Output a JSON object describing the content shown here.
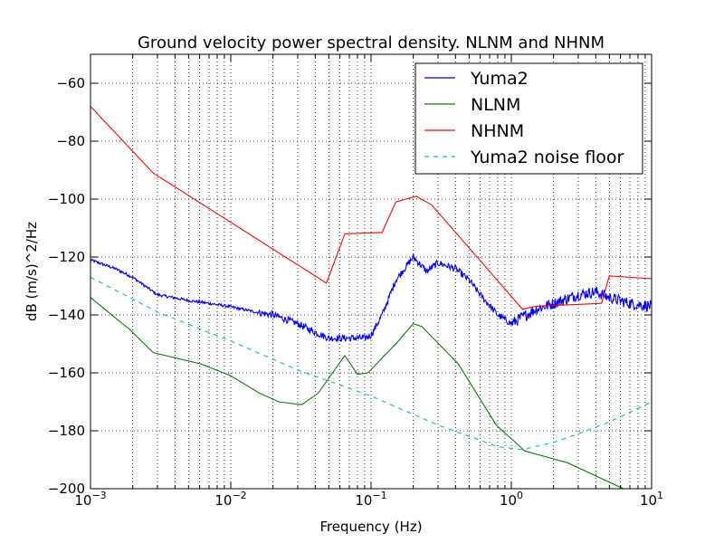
{
  "chart_data": {
    "type": "line",
    "title": "Ground velocity power spectral density. NLNM and NHNM",
    "xlabel": "Frequency (Hz)",
    "ylabel": "dB (m/s)^2/Hz",
    "xscale": "log",
    "xlim": [
      0.001,
      10
    ],
    "ylim": [
      -200,
      -50
    ],
    "x_ticks": [
      {
        "value": 0.001,
        "base": "10",
        "exp": "−3"
      },
      {
        "value": 0.01,
        "base": "10",
        "exp": "−2"
      },
      {
        "value": 0.1,
        "base": "10",
        "exp": "−1"
      },
      {
        "value": 1,
        "base": "10",
        "exp": "0"
      },
      {
        "value": 10,
        "base": "10",
        "exp": "1"
      }
    ],
    "y_ticks": [
      -200,
      -180,
      -160,
      -140,
      -120,
      -100,
      -80,
      -60
    ],
    "y_tick_labels": [
      "−200",
      "−180",
      "−160",
      "−140",
      "−120",
      "−100",
      "−80",
      "−60"
    ],
    "grid": true,
    "legend_position": "top-right",
    "series": [
      {
        "name": "Yuma2",
        "color": "#0000ff",
        "style": "solid",
        "noisy": true,
        "x": [
          0.001,
          0.0015,
          0.002,
          0.003,
          0.005,
          0.007,
          0.0095,
          0.012,
          0.015,
          0.02,
          0.03,
          0.04,
          0.05,
          0.07,
          0.09,
          0.1,
          0.12,
          0.15,
          0.2,
          0.25,
          0.3,
          0.4,
          0.5,
          0.6,
          0.8,
          1.0,
          1.5,
          2.0,
          3.0,
          4.0,
          5.0,
          7.0,
          10.0
        ],
        "y": [
          -121,
          -124,
          -127,
          -133,
          -135,
          -136,
          -137,
          -138,
          -139,
          -140,
          -143,
          -146,
          -148,
          -148,
          -148,
          -147,
          -140,
          -128,
          -120,
          -125,
          -122,
          -124,
          -128,
          -133,
          -140,
          -143,
          -138,
          -136,
          -133,
          -132,
          -134,
          -136,
          -137
        ]
      },
      {
        "name": "NLNM",
        "color": "#008000",
        "style": "solid",
        "x": [
          0.001,
          0.0019,
          0.0028,
          0.0062,
          0.01,
          0.016,
          0.022,
          0.032,
          0.042,
          0.065,
          0.08,
          0.095,
          0.15,
          0.2,
          0.23,
          0.42,
          0.78,
          1.25,
          2.5,
          6.3,
          10.0
        ],
        "y": [
          -134,
          -145,
          -153,
          -157,
          -161,
          -167,
          -170,
          -171,
          -167,
          -154,
          -160.5,
          -160,
          -150,
          -143,
          -144,
          -157,
          -178,
          -187,
          -191,
          -200,
          -205
        ]
      },
      {
        "name": "NHNM",
        "color": "#ff0000",
        "style": "solid",
        "x": [
          0.001,
          0.0028,
          0.0481,
          0.065,
          0.12,
          0.15,
          0.21,
          0.27,
          1.2,
          1.5,
          4.4,
          5.0,
          10.0
        ],
        "y": [
          -68,
          -91,
          -129,
          -112,
          -111.5,
          -101,
          -99,
          -102,
          -138,
          -137,
          -136,
          -126.5,
          -127.5
        ]
      },
      {
        "name": "Yuma2 noise floor",
        "color": "#00bfbf",
        "style": "dashed",
        "x": [
          0.001,
          0.003,
          0.01,
          0.03,
          0.1,
          0.3,
          0.8,
          1.2,
          2.0,
          3.0,
          5.0,
          10.0
        ],
        "y": [
          -127,
          -139,
          -149,
          -159,
          -168,
          -178,
          -185.5,
          -186.5,
          -184,
          -181,
          -177,
          -170
        ]
      }
    ]
  }
}
